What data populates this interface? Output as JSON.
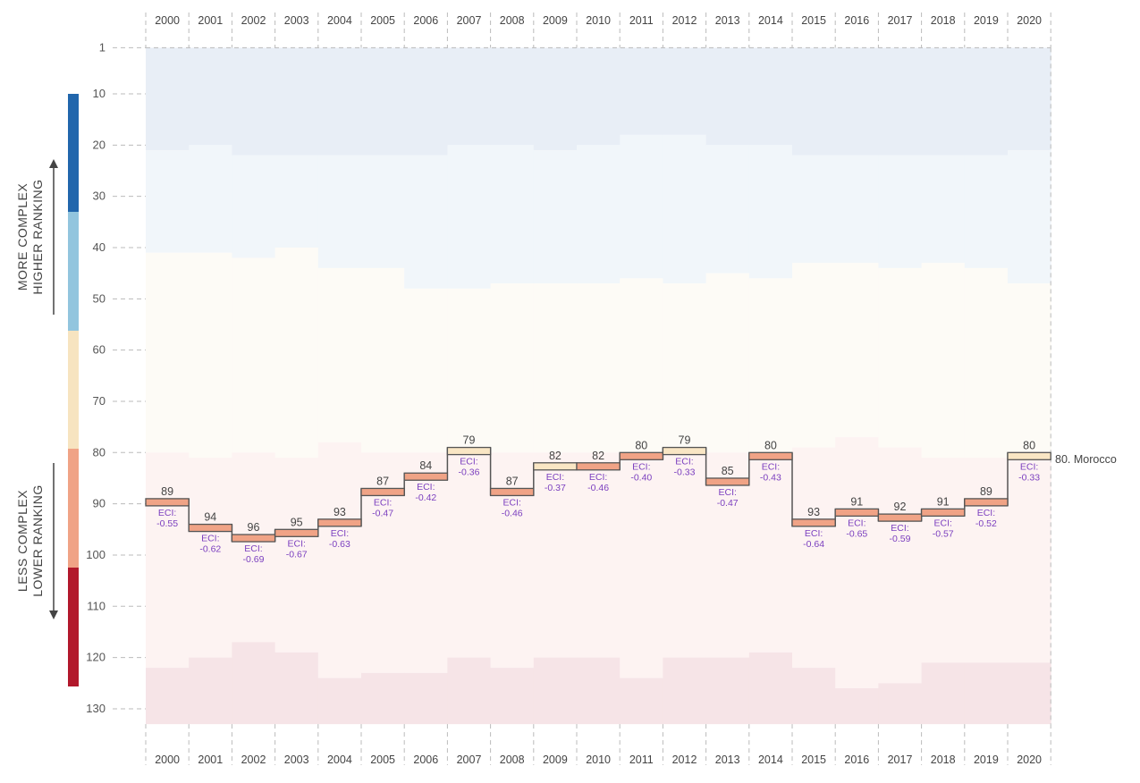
{
  "chart_data": {
    "type": "line",
    "title": "",
    "country_label": "80. Morocco",
    "xlabel": "",
    "ylabel": "",
    "ylim": [
      1,
      133
    ],
    "y_ticks": [
      1,
      10,
      20,
      30,
      40,
      50,
      60,
      70,
      80,
      90,
      100,
      110,
      120,
      130
    ],
    "years": [
      "2000",
      "2001",
      "2002",
      "2003",
      "2004",
      "2005",
      "2006",
      "2007",
      "2008",
      "2009",
      "2010",
      "2011",
      "2012",
      "2013",
      "2014",
      "2015",
      "2016",
      "2017",
      "2018",
      "2019",
      "2020"
    ],
    "ranks": [
      89,
      94,
      96,
      95,
      93,
      87,
      84,
      79,
      87,
      82,
      82,
      80,
      79,
      85,
      80,
      93,
      91,
      92,
      91,
      89,
      80
    ],
    "eci_prefix": "ECI:",
    "eci": [
      "-0.55",
      "-0.62",
      "-0.69",
      "-0.67",
      "-0.63",
      "-0.47",
      "-0.42",
      "-0.36",
      "-0.46",
      "-0.37",
      "-0.46",
      "-0.40",
      "-0.33",
      "-0.47",
      "-0.43",
      "-0.64",
      "-0.65",
      "-0.59",
      "-0.57",
      "-0.52",
      "-0.33"
    ],
    "point_band": [
      "low",
      "low",
      "low",
      "low",
      "low",
      "low",
      "low",
      "mid",
      "low",
      "mid",
      "low",
      "low",
      "mid",
      "low",
      "low",
      "low",
      "low",
      "low",
      "low",
      "low",
      "mid"
    ],
    "band_boundaries": {
      "b1": [
        21,
        20,
        22,
        22,
        22,
        22,
        22,
        20,
        20,
        21,
        20,
        18,
        18,
        20,
        20,
        22,
        22,
        22,
        22,
        22,
        21
      ],
      "b2": [
        41,
        41,
        42,
        40,
        44,
        44,
        48,
        48,
        47,
        47,
        47,
        46,
        47,
        45,
        46,
        43,
        43,
        44,
        43,
        44,
        47
      ],
      "b3": [
        80,
        81,
        80,
        81,
        78,
        80,
        80,
        80,
        80,
        80,
        80,
        80,
        80,
        80,
        80,
        79,
        77,
        79,
        81,
        81,
        80
      ],
      "b4": [
        122,
        120,
        117,
        119,
        124,
        123,
        123,
        120,
        122,
        120,
        120,
        124,
        120,
        120,
        119,
        122,
        126,
        125,
        121,
        121,
        121
      ]
    },
    "colors": {
      "band_fill": [
        "#e8eef6",
        "#f1f6fa",
        "#fdfbf6",
        "#fdf3f2",
        "#f6e4e7"
      ],
      "legend": [
        "#2166ac",
        "#92c5de",
        "#f7e4c0",
        "#f0a386",
        "#b2182b"
      ],
      "box_low": "#f0a386",
      "box_mid": "#f9e6c4",
      "eci_text": "#7b3fbf"
    },
    "legend": {
      "upper_line1": "MORE COMPLEX",
      "upper_line2": "HIGHER RANKING",
      "lower_line1": "LESS COMPLEX",
      "lower_line2": "LOWER RANKING"
    }
  }
}
